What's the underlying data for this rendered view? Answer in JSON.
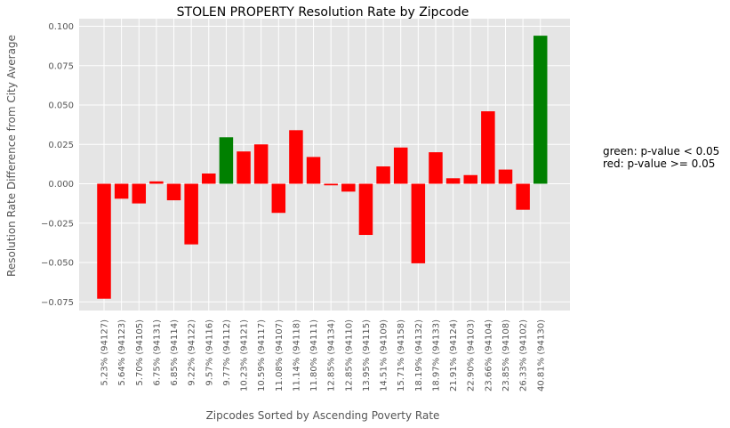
{
  "chart_data": {
    "type": "bar",
    "title": "STOLEN PROPERTY Resolution Rate by Zipcode",
    "xlabel": "Zipcodes Sorted by Ascending Poverty Rate",
    "ylabel": "Resolution Rate Difference from City Average",
    "ylim": [
      -0.08,
      0.1
    ],
    "yticks": [
      "0.100",
      "0.075",
      "0.050",
      "0.025",
      "0.000",
      "−0.025",
      "−0.050",
      "−0.075"
    ],
    "ytick_values": [
      0.1,
      0.075,
      0.05,
      0.025,
      0.0,
      -0.025,
      -0.05,
      -0.075
    ],
    "grid": true,
    "categories": [
      "5.23% (94127)",
      "5.64% (94123)",
      "5.70% (94105)",
      "6.75% (94131)",
      "6.85% (94114)",
      "9.22% (94122)",
      "9.57% (94116)",
      "9.77% (94112)",
      "10.23% (94121)",
      "10.59% (94117)",
      "11.08% (94107)",
      "11.14% (94118)",
      "11.80% (94111)",
      "12.85% (94134)",
      "12.85% (94110)",
      "13.95% (94115)",
      "14.51% (94109)",
      "15.71% (94158)",
      "18.19% (94132)",
      "18.97% (94133)",
      "21.91% (94124)",
      "22.90% (94103)",
      "23.66% (94104)",
      "23.85% (94108)",
      "26.33% (94102)",
      "40.81% (94130)"
    ],
    "values": [
      -0.073,
      -0.0095,
      -0.0125,
      0.0015,
      -0.0105,
      -0.0385,
      0.0065,
      0.0295,
      0.0205,
      0.025,
      -0.0185,
      0.034,
      0.017,
      -0.001,
      -0.005,
      -0.0325,
      0.011,
      0.023,
      -0.0505,
      0.02,
      0.0035,
      0.0055,
      0.046,
      0.009,
      -0.0165,
      0.094
    ],
    "bar_colors": [
      "red",
      "red",
      "red",
      "red",
      "red",
      "red",
      "red",
      "green",
      "red",
      "red",
      "red",
      "red",
      "red",
      "red",
      "red",
      "red",
      "red",
      "red",
      "red",
      "red",
      "red",
      "red",
      "red",
      "red",
      "red",
      "green"
    ],
    "colors": {
      "red": "#ff0000",
      "green": "#008000",
      "plot_bg": "#e5e5e5",
      "grid": "#ffffff"
    },
    "annotations": [
      "green: p-value < 0.05",
      "red: p-value >= 0.05"
    ]
  }
}
